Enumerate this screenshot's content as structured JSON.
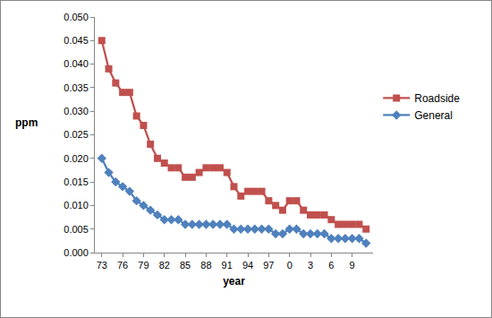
{
  "chart_data": {
    "type": "line",
    "x_label": "year",
    "y_label": "ppm",
    "categories": [
      "73",
      null,
      null,
      "76",
      null,
      null,
      "79",
      null,
      null,
      "82",
      null,
      null,
      "85",
      null,
      null,
      "88",
      null,
      null,
      "91",
      null,
      null,
      "94",
      null,
      null,
      "97",
      null,
      null,
      "0",
      null,
      null,
      "3",
      null,
      null,
      "6",
      null,
      null,
      "9",
      null,
      null
    ],
    "series": [
      {
        "name": "Roadside",
        "color": "#c0504d",
        "marker": "square",
        "values": [
          0.045,
          0.039,
          0.036,
          0.034,
          0.034,
          0.029,
          0.027,
          0.023,
          0.02,
          0.019,
          0.018,
          0.018,
          0.016,
          0.016,
          0.017,
          0.018,
          0.018,
          0.018,
          0.017,
          0.014,
          0.012,
          0.013,
          0.013,
          0.013,
          0.011,
          0.01,
          0.009,
          0.011,
          0.011,
          0.009,
          0.008,
          0.008,
          0.008,
          0.007,
          0.006,
          0.006,
          0.006,
          0.006,
          0.005
        ]
      },
      {
        "name": "General",
        "color": "#4f81bd",
        "marker": "diamond",
        "values": [
          0.02,
          0.017,
          0.015,
          0.014,
          0.013,
          0.011,
          0.01,
          0.009,
          0.008,
          0.007,
          0.007,
          0.007,
          0.006,
          0.006,
          0.006,
          0.006,
          0.006,
          0.006,
          0.006,
          0.005,
          0.005,
          0.005,
          0.005,
          0.005,
          0.005,
          0.004,
          0.004,
          0.005,
          0.005,
          0.004,
          0.004,
          0.004,
          0.004,
          0.003,
          0.003,
          0.003,
          0.003,
          0.003,
          0.002
        ]
      }
    ],
    "ylim": [
      0,
      0.05
    ],
    "yticks": [
      {
        "value": 0,
        "label": "0.000"
      },
      {
        "value": 0.005,
        "label": "0.005"
      },
      {
        "value": 0.01,
        "label": "0.010"
      },
      {
        "value": 0.015,
        "label": "0.015"
      },
      {
        "value": 0.02,
        "label": "0.020"
      },
      {
        "value": 0.025,
        "label": "0.025"
      },
      {
        "value": 0.03,
        "label": "0.030"
      },
      {
        "value": 0.035,
        "label": "0.035"
      },
      {
        "value": 0.04,
        "label": "0.040"
      },
      {
        "value": 0.045,
        "label": "0.045"
      },
      {
        "value": 0.05,
        "label": "0.050"
      }
    ],
    "grid": false,
    "legend": "right"
  }
}
